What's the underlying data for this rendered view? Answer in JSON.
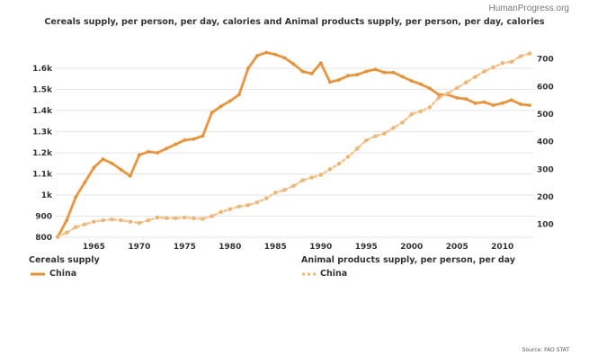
{
  "header": {
    "brand": "HumanProgress.org",
    "title": "Cereals supply, per person, per day, calories and Animal products supply, per person, per day, calories"
  },
  "footer": {
    "source": "Source: FAO STAT"
  },
  "colors": {
    "line": "#e0913a",
    "grid": "#e6e6e6"
  },
  "chart_data": {
    "type": "line",
    "title": "Cereals supply, per person, per day, calories and Animal products supply, per person, per day, calories",
    "x": [
      1961,
      1962,
      1963,
      1964,
      1965,
      1966,
      1967,
      1968,
      1969,
      1970,
      1971,
      1972,
      1973,
      1974,
      1975,
      1976,
      1977,
      1978,
      1979,
      1980,
      1981,
      1982,
      1983,
      1984,
      1985,
      1986,
      1987,
      1988,
      1989,
      1990,
      1991,
      1992,
      1993,
      1994,
      1995,
      1996,
      1997,
      1998,
      1999,
      2000,
      2001,
      2002,
      2003,
      2004,
      2005,
      2006,
      2007,
      2008,
      2009,
      2010,
      2011,
      2012,
      2013
    ],
    "xlim": [
      1961,
      2013
    ],
    "xticks": [
      1965,
      1970,
      1975,
      1980,
      1985,
      1990,
      1995,
      2000,
      2005,
      2010
    ],
    "left_axis": {
      "ylim": [
        800,
        1700
      ],
      "ticks": [
        800,
        900,
        1000,
        1100,
        1200,
        1300,
        1400,
        1500,
        1600
      ],
      "tick_labels": [
        "800",
        "900",
        "1k",
        "1.1k",
        "1.2k",
        "1.3k",
        "1.4k",
        "1.5k",
        "1.6k"
      ]
    },
    "right_axis": {
      "ylim": [
        45,
        740
      ],
      "ticks": [
        100,
        200,
        300,
        400,
        500,
        600,
        700
      ],
      "tick_labels": [
        "100",
        "200",
        "300",
        "400",
        "500",
        "600",
        "700"
      ]
    },
    "grid": true,
    "series": [
      {
        "name": "China",
        "group": "Cereals supply",
        "axis": "left",
        "style": "solid",
        "values": [
          800,
          880,
          990,
          1060,
          1130,
          1170,
          1150,
          1120,
          1090,
          1190,
          1205,
          1200,
          1220,
          1240,
          1260,
          1265,
          1280,
          1390,
          1420,
          1445,
          1475,
          1600,
          1660,
          1675,
          1665,
          1650,
          1620,
          1585,
          1575,
          1625,
          1535,
          1545,
          1565,
          1570,
          1585,
          1595,
          1580,
          1580,
          1560,
          1540,
          1525,
          1505,
          1475,
          1475,
          1460,
          1455,
          1435,
          1440,
          1425,
          1435,
          1450,
          1430,
          1425
        ]
      },
      {
        "name": "China",
        "group": "Animal products supply, per person, per day",
        "axis": "right",
        "style": "dotted",
        "values": [
          55,
          70,
          90,
          100,
          110,
          115,
          118,
          115,
          110,
          105,
          115,
          125,
          123,
          122,
          125,
          122,
          120,
          130,
          145,
          155,
          165,
          170,
          180,
          195,
          215,
          225,
          240,
          260,
          270,
          280,
          300,
          320,
          345,
          375,
          405,
          420,
          430,
          450,
          470,
          500,
          510,
          525,
          560,
          575,
          595,
          615,
          635,
          655,
          670,
          685,
          690,
          710,
          720
        ]
      }
    ],
    "legend": [
      {
        "title": "Cereals supply",
        "item": "China",
        "style": "solid",
        "placement": "bottom-left"
      },
      {
        "title": "Animal products supply, per person, per day",
        "item": "China",
        "style": "dotted",
        "placement": "bottom-center"
      }
    ]
  }
}
